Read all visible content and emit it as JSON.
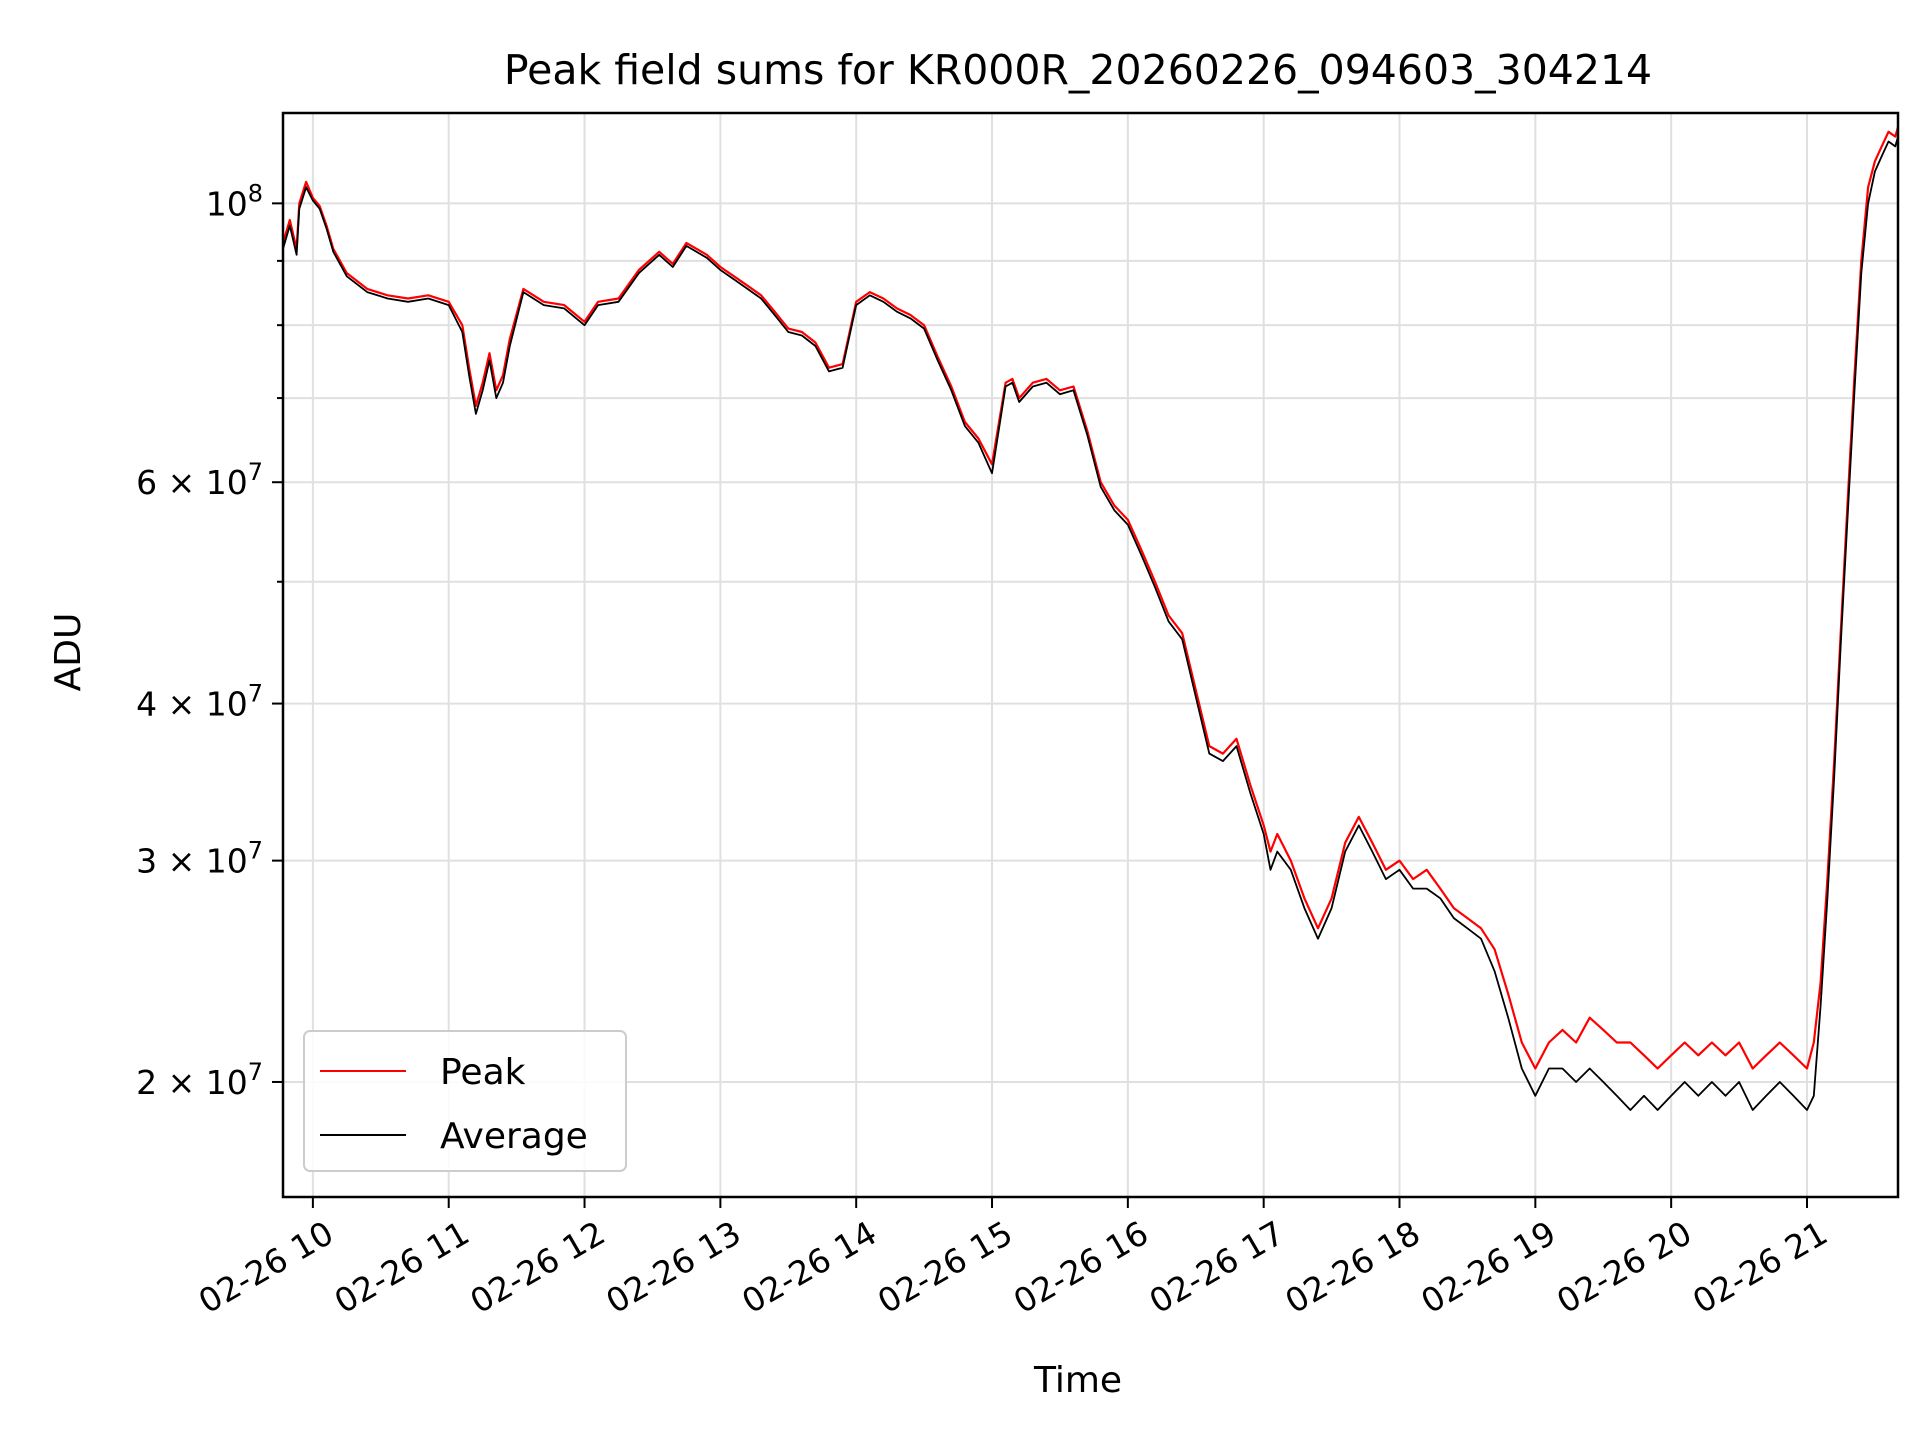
{
  "chart_data": {
    "type": "line",
    "title": "Peak field sums for KR000R_20260226_094603_304214",
    "xlabel": "Time",
    "ylabel": "ADU",
    "x_unit": "hours of day (2026-02-26)",
    "xlim": [
      9.78,
      21.67
    ],
    "ylim": [
      16200000,
      118000000
    ],
    "y_scale": "log",
    "grid": true,
    "legend_position": "lower left",
    "x_ticks": [
      {
        "value": 10,
        "label": "02-26 10"
      },
      {
        "value": 11,
        "label": "02-26 11"
      },
      {
        "value": 12,
        "label": "02-26 12"
      },
      {
        "value": 13,
        "label": "02-26 13"
      },
      {
        "value": 14,
        "label": "02-26 14"
      },
      {
        "value": 15,
        "label": "02-26 15"
      },
      {
        "value": 16,
        "label": "02-26 16"
      },
      {
        "value": 17,
        "label": "02-26 17"
      },
      {
        "value": 18,
        "label": "02-26 18"
      },
      {
        "value": 19,
        "label": "02-26 19"
      },
      {
        "value": 20,
        "label": "02-26 20"
      },
      {
        "value": 21,
        "label": "02-26 21"
      }
    ],
    "y_major_ticks": [
      {
        "value": 20000000,
        "mantissa": "2",
        "exponent": "7",
        "label": "2 × 10^7"
      },
      {
        "value": 30000000,
        "mantissa": "3",
        "exponent": "7",
        "label": "3 × 10^7"
      },
      {
        "value": 40000000,
        "mantissa": "4",
        "exponent": "7",
        "label": "4 × 10^7"
      },
      {
        "value": 60000000,
        "mantissa": "6",
        "exponent": "7",
        "label": "6 × 10^7"
      },
      {
        "value": 100000000,
        "mantissa": "",
        "exponent": "8",
        "label": "10^8"
      }
    ],
    "y_minor_ticks": [
      50000000,
      70000000,
      80000000,
      90000000
    ],
    "series": [
      {
        "name": "Peak",
        "color": "#ff0000",
        "x": [
          9.78,
          9.83,
          9.88,
          9.9,
          9.95,
          10.0,
          10.05,
          10.1,
          10.15,
          10.25,
          10.4,
          10.55,
          10.7,
          10.85,
          11.0,
          11.1,
          11.15,
          11.2,
          11.25,
          11.3,
          11.35,
          11.4,
          11.45,
          11.55,
          11.7,
          11.85,
          12.0,
          12.1,
          12.25,
          12.4,
          12.55,
          12.65,
          12.75,
          12.9,
          13.0,
          13.1,
          13.2,
          13.3,
          13.4,
          13.5,
          13.6,
          13.7,
          13.8,
          13.9,
          14.0,
          14.1,
          14.2,
          14.3,
          14.4,
          14.5,
          14.6,
          14.7,
          14.8,
          14.9,
          15.0,
          15.1,
          15.15,
          15.2,
          15.3,
          15.4,
          15.5,
          15.6,
          15.7,
          15.8,
          15.9,
          16.0,
          16.1,
          16.2,
          16.3,
          16.4,
          16.5,
          16.6,
          16.7,
          16.8,
          16.9,
          17.0,
          17.05,
          17.1,
          17.2,
          17.3,
          17.4,
          17.5,
          17.6,
          17.7,
          17.8,
          17.9,
          18.0,
          18.1,
          18.2,
          18.3,
          18.4,
          18.5,
          18.6,
          18.7,
          18.8,
          18.9,
          19.0,
          19.1,
          19.2,
          19.3,
          19.4,
          19.5,
          19.6,
          19.7,
          19.8,
          19.9,
          20.0,
          20.1,
          20.2,
          20.3,
          20.4,
          20.5,
          20.6,
          20.7,
          20.8,
          20.9,
          21.0,
          21.05,
          21.1,
          21.15,
          21.2,
          21.25,
          21.3,
          21.35,
          21.4,
          21.45,
          21.5,
          21.55,
          21.6,
          21.65,
          21.67
        ],
        "values": [
          93000000,
          97000000,
          92000000,
          100000000,
          104000000,
          101000000,
          99500000,
          96000000,
          92000000,
          88000000,
          85500000,
          84500000,
          84000000,
          84500000,
          83500000,
          80000000,
          74000000,
          69000000,
          72000000,
          76000000,
          71000000,
          73000000,
          78000000,
          85500000,
          83500000,
          83000000,
          80500000,
          83500000,
          84000000,
          88500000,
          91500000,
          89500000,
          93000000,
          91000000,
          89000000,
          87500000,
          86000000,
          84500000,
          82000000,
          79500000,
          79000000,
          77500000,
          74000000,
          74500000,
          83500000,
          85000000,
          84000000,
          82500000,
          81500000,
          80000000,
          75500000,
          71500000,
          67000000,
          65000000,
          62000000,
          72000000,
          72500000,
          70000000,
          72000000,
          72500000,
          71000000,
          71500000,
          66000000,
          60000000,
          57500000,
          56000000,
          53000000,
          50000000,
          47000000,
          45500000,
          41000000,
          37000000,
          36500000,
          37500000,
          34500000,
          32000000,
          30500000,
          31500000,
          30000000,
          28000000,
          26500000,
          28000000,
          31000000,
          32500000,
          31000000,
          29500000,
          30000000,
          29000000,
          29500000,
          28500000,
          27500000,
          27000000,
          26500000,
          25500000,
          23500000,
          21500000,
          20500000,
          21500000,
          22000000,
          21500000,
          22500000,
          22000000,
          21500000,
          21500000,
          21000000,
          20500000,
          21000000,
          21500000,
          21000000,
          21500000,
          21000000,
          21500000,
          20500000,
          21000000,
          21500000,
          21000000,
          20500000,
          21500000,
          24000000,
          29000000,
          36000000,
          46000000,
          58000000,
          73000000,
          90000000,
          103000000,
          108000000,
          111000000,
          114000000,
          113000000,
          115000000
        ]
      },
      {
        "name": "Average",
        "color": "#000000",
        "x": [
          9.78,
          9.83,
          9.88,
          9.9,
          9.95,
          10.0,
          10.05,
          10.1,
          10.15,
          10.25,
          10.4,
          10.55,
          10.7,
          10.85,
          11.0,
          11.1,
          11.15,
          11.2,
          11.25,
          11.3,
          11.35,
          11.4,
          11.45,
          11.55,
          11.7,
          11.85,
          12.0,
          12.1,
          12.25,
          12.4,
          12.55,
          12.65,
          12.75,
          12.9,
          13.0,
          13.1,
          13.2,
          13.3,
          13.4,
          13.5,
          13.6,
          13.7,
          13.8,
          13.9,
          14.0,
          14.1,
          14.2,
          14.3,
          14.4,
          14.5,
          14.6,
          14.7,
          14.8,
          14.9,
          15.0,
          15.1,
          15.15,
          15.2,
          15.3,
          15.4,
          15.5,
          15.6,
          15.7,
          15.8,
          15.9,
          16.0,
          16.1,
          16.2,
          16.3,
          16.4,
          16.5,
          16.6,
          16.7,
          16.8,
          16.9,
          17.0,
          17.05,
          17.1,
          17.2,
          17.3,
          17.4,
          17.5,
          17.6,
          17.7,
          17.8,
          17.9,
          18.0,
          18.1,
          18.2,
          18.3,
          18.4,
          18.5,
          18.6,
          18.7,
          18.8,
          18.9,
          19.0,
          19.1,
          19.2,
          19.3,
          19.4,
          19.5,
          19.6,
          19.7,
          19.8,
          19.9,
          20.0,
          20.1,
          20.2,
          20.3,
          20.4,
          20.5,
          20.6,
          20.7,
          20.8,
          20.9,
          21.0,
          21.05,
          21.1,
          21.15,
          21.2,
          21.25,
          21.3,
          21.35,
          21.4,
          21.45,
          21.5,
          21.55,
          21.6,
          21.65,
          21.67
        ],
        "values": [
          92000000,
          96000000,
          91000000,
          99000000,
          103000000,
          100500000,
          99000000,
          95500000,
          91500000,
          87500000,
          85000000,
          84000000,
          83500000,
          84000000,
          83000000,
          79000000,
          73000000,
          68000000,
          71000000,
          75000000,
          70000000,
          72000000,
          77000000,
          85000000,
          83000000,
          82500000,
          80000000,
          83000000,
          83500000,
          88000000,
          91000000,
          89000000,
          92500000,
          90500000,
          88500000,
          87000000,
          85500000,
          84000000,
          81500000,
          79000000,
          78500000,
          77000000,
          73500000,
          74000000,
          83000000,
          84500000,
          83500000,
          82000000,
          81000000,
          79500000,
          75000000,
          71000000,
          66500000,
          64500000,
          61000000,
          71500000,
          72000000,
          69500000,
          71500000,
          72000000,
          70500000,
          71000000,
          65500000,
          59500000,
          57000000,
          55500000,
          52500000,
          49500000,
          46500000,
          45000000,
          40500000,
          36500000,
          36000000,
          37000000,
          34000000,
          31500000,
          29500000,
          30500000,
          29500000,
          27500000,
          26000000,
          27500000,
          30500000,
          32000000,
          30500000,
          29000000,
          29500000,
          28500000,
          28500000,
          28000000,
          27000000,
          26500000,
          26000000,
          24500000,
          22500000,
          20500000,
          19500000,
          20500000,
          20500000,
          20000000,
          20500000,
          20000000,
          19500000,
          19000000,
          19500000,
          19000000,
          19500000,
          20000000,
          19500000,
          20000000,
          19500000,
          20000000,
          19000000,
          19500000,
          20000000,
          19500000,
          19000000,
          19500000,
          23000000,
          28000000,
          35000000,
          45000000,
          56500000,
          71000000,
          88000000,
          100000000,
          106000000,
          109000000,
          112000000,
          111000000,
          113000000
        ]
      }
    ]
  }
}
